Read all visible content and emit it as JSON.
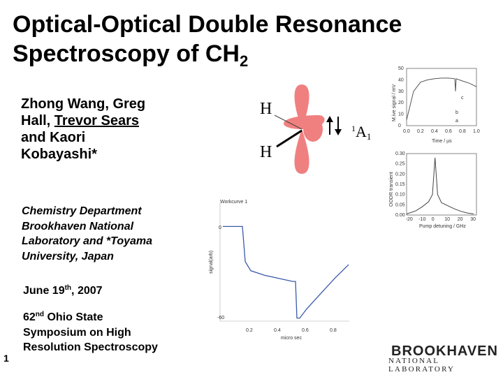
{
  "title": {
    "line1": "Optical-Optical Double Resonance",
    "line2": "Spectroscopy of CH",
    "subscript": "2"
  },
  "authors": {
    "part1": "Zhong Wang, Greg",
    "part2": "Hall, ",
    "underlined": "Trevor Sears",
    "part3": "and Kaori",
    "part4": "Kobayashi*"
  },
  "affiliation": [
    "Chemistry Department",
    "Brookhaven National",
    "Laboratory and *Toyama",
    "University, Japan"
  ],
  "date": {
    "prefix": "June 19",
    "sup": "th",
    "suffix": ", 2007"
  },
  "conference": {
    "num": "62",
    "sup": "nd",
    "line1_rest": " Ohio State",
    "line2": "Symposium on High",
    "line3": "Resolution Spectroscopy"
  },
  "slide_number": "1",
  "molecule": {
    "atom_top": "H",
    "atom_bottom": "H",
    "state_sup": "1",
    "state": "A",
    "state_sub": "1",
    "lobe_color": "#f08080"
  },
  "logo": {
    "top": "BROOKHAVEN",
    "bottom": "NATIONAL LABORATORY"
  },
  "chart_data": [
    {
      "type": "line",
      "title": "",
      "xlabel": "Time / µs",
      "ylabel": "M.ive signal / mV",
      "x_ticks": [
        "0.0",
        "0.2",
        "0.4",
        "0.6",
        "0.8",
        "1.0"
      ],
      "y_ticks": [
        "50",
        "40",
        "30",
        "20",
        "10",
        "0"
      ],
      "annotations": [
        "c",
        "b",
        "a"
      ],
      "series": [
        {
          "x": [
            0.0,
            0.1,
            0.2,
            0.3,
            0.4,
            0.5,
            0.6,
            0.69,
            0.7,
            0.71,
            0.8,
            0.9,
            1.0
          ],
          "y": [
            5,
            30,
            38,
            40,
            41,
            41.5,
            41.5,
            41,
            30,
            41,
            39,
            37,
            34
          ]
        }
      ]
    },
    {
      "type": "line",
      "title": "",
      "xlabel": "Pump detuning / GHz",
      "ylabel": "OODR transient",
      "x_ticks": [
        "-20",
        "-10",
        "0",
        "10",
        "20",
        "30"
      ],
      "y_ticks": [
        "0.30",
        "0.25",
        "0.20",
        "0.15",
        "0.10",
        "0.05",
        "0.00"
      ],
      "series": [
        {
          "x": [
            -22,
            -15,
            -10,
            -5,
            -2,
            0,
            2,
            5,
            10,
            15,
            20,
            25,
            30
          ],
          "y": [
            0.005,
            0.02,
            0.04,
            0.065,
            0.1,
            0.28,
            0.1,
            0.06,
            0.045,
            0.03,
            0.018,
            0.01,
            0.005
          ]
        }
      ]
    },
    {
      "type": "line",
      "title": "",
      "xlabel": "micro sec",
      "ylabel": "signal(arb)",
      "panel_label": "Workcurve 1",
      "y_tick_labels": [
        "0",
        "-60"
      ],
      "x_ticks": [
        "0.2",
        "0.4",
        "0.6",
        "0.8"
      ],
      "series": [
        {
          "x": [
            0.0,
            0.14,
            0.16,
            0.2,
            0.3,
            0.4,
            0.5,
            0.52,
            0.53,
            0.55,
            0.6,
            0.7,
            0.8,
            0.9
          ],
          "y": [
            -2,
            -2,
            -25,
            -31,
            -34,
            -36,
            -38,
            -38,
            -62,
            -62,
            -56,
            -46,
            -36,
            -27
          ]
        }
      ]
    }
  ]
}
